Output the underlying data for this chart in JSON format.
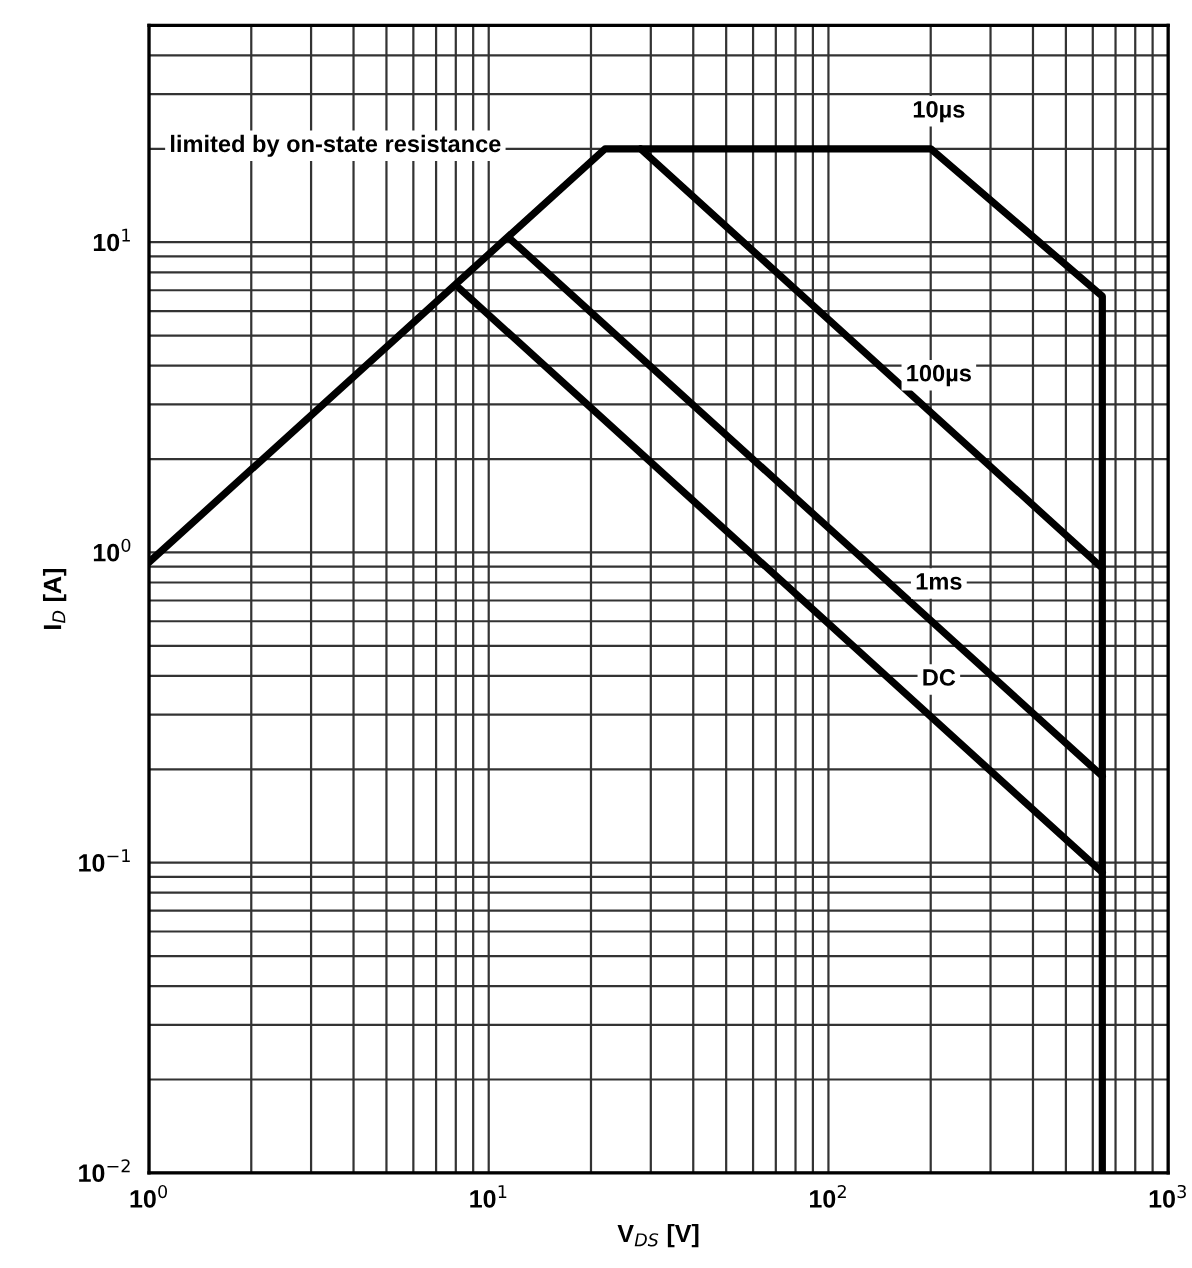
{
  "chart_data": {
    "type": "line",
    "xlabel": "V$_{DS}$ [V]",
    "ylabel": "I$_{D}$ [A]",
    "log": "xy",
    "xlim": [
      1,
      1000
    ],
    "ylim": [
      0.01,
      50
    ],
    "xticks": [
      {
        "value": 1,
        "label": "10$^{0}$"
      },
      {
        "value": 10,
        "label": "10$^{1}$"
      },
      {
        "value": 100,
        "label": "10$^{2}$"
      },
      {
        "value": 1000,
        "label": "10$^{3}$"
      }
    ],
    "yticks": [
      {
        "value": 0.01,
        "label": "10$^{−2}$"
      },
      {
        "value": 0.1,
        "label": "10$^{−1}$"
      },
      {
        "value": 1,
        "label": "10$^{0}$"
      },
      {
        "value": 10,
        "label": "10$^{1}$"
      }
    ],
    "grid": true,
    "marker": "none",
    "line_style": "solid",
    "series": [
      {
        "name": "10µs",
        "color": "#000000",
        "x": [
          1,
          22,
          200,
          640,
          640
        ],
        "values": [
          0.93,
          20,
          20,
          6.7,
          0.01
        ]
      },
      {
        "name": "100µs",
        "color": "#000000",
        "x": [
          28,
          640
        ],
        "values": [
          20,
          0.89
        ]
      },
      {
        "name": "1ms",
        "color": "#000000",
        "x": [
          11.5,
          640
        ],
        "values": [
          10.3,
          0.19
        ]
      },
      {
        "name": "DC",
        "color": "#000000",
        "x": [
          8.2,
          640
        ],
        "values": [
          7.1,
          0.093
        ]
      }
    ],
    "annotations": [
      "limited by on-state resistance"
    ]
  }
}
